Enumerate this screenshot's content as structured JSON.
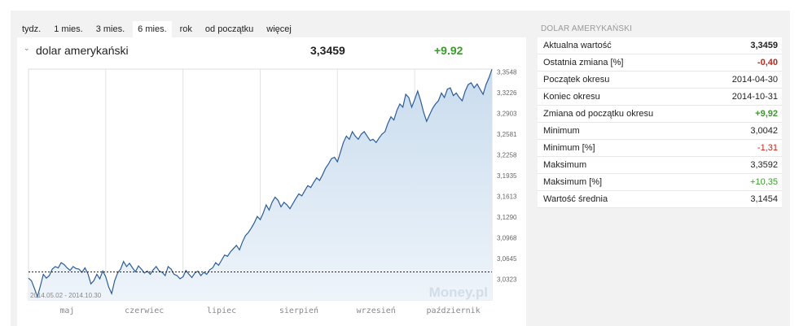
{
  "tabs": [
    {
      "label": "tydz."
    },
    {
      "label": "1 mies."
    },
    {
      "label": "3 mies."
    },
    {
      "label": "6 mies.",
      "active": true
    },
    {
      "label": "rok"
    },
    {
      "label": "od początku"
    },
    {
      "label": "więcej"
    }
  ],
  "header": {
    "name": "dolar amerykański",
    "value": "3,3459",
    "change": "+9.92"
  },
  "sidebar": {
    "title": "DOLAR AMERYKAŃSKI",
    "rows": [
      {
        "label": "Aktualna wartość",
        "value": "3,3459",
        "style": "bold"
      },
      {
        "label": "Ostatnia zmiana [%]",
        "value": "-0,40",
        "style": "red bold"
      },
      {
        "label": "Początek okresu",
        "value": "2014-04-30",
        "style": ""
      },
      {
        "label": "Koniec okresu",
        "value": "2014-10-31",
        "style": ""
      },
      {
        "label": "Zmiana od początku okresu",
        "value": "+9,92",
        "style": "green bold"
      },
      {
        "label": "Minimum",
        "value": "3,0042",
        "style": ""
      },
      {
        "label": "Minimum [%]",
        "value": "-1,31",
        "style": "red"
      },
      {
        "label": "Maksimum",
        "value": "3,3592",
        "style": ""
      },
      {
        "label": "Maksimum [%]",
        "value": "+10,35",
        "style": "green"
      },
      {
        "label": "Wartość średnia",
        "value": "3,1454",
        "style": ""
      }
    ]
  },
  "chart_data": {
    "type": "area",
    "date_range_label": "2014.05.02 - 2014.10.30",
    "watermark": "Money.pl",
    "x_labels": [
      "maj",
      "czerwiec",
      "lipiec",
      "sierpień",
      "wrzesień",
      "październik"
    ],
    "y_ticks": [
      "3,0323",
      "3,0645",
      "3,0968",
      "3,1290",
      "3,1613",
      "3,1935",
      "3,2258",
      "3,2581",
      "3,2903",
      "3,3226",
      "3,3548"
    ],
    "ylim": [
      3.0,
      3.3592
    ],
    "reference_value": 3.0436,
    "grid": true,
    "line_color": "#2b5c96",
    "values": [
      3.034,
      3.03,
      3.018,
      3.005,
      3.022,
      3.04,
      3.034,
      3.038,
      3.048,
      3.052,
      3.05,
      3.058,
      3.055,
      3.05,
      3.046,
      3.052,
      3.049,
      3.048,
      3.043,
      3.05,
      3.041,
      3.025,
      3.03,
      3.04,
      3.033,
      3.045,
      3.036,
      3.02,
      3.01,
      3.03,
      3.042,
      3.048,
      3.06,
      3.052,
      3.057,
      3.05,
      3.044,
      3.053,
      3.048,
      3.042,
      3.045,
      3.04,
      3.047,
      3.052,
      3.045,
      3.043,
      3.038,
      3.052,
      3.048,
      3.04,
      3.038,
      3.033,
      3.036,
      3.046,
      3.04,
      3.035,
      3.042,
      3.045,
      3.038,
      3.043,
      3.04,
      3.047,
      3.05,
      3.058,
      3.054,
      3.062,
      3.07,
      3.068,
      3.075,
      3.08,
      3.085,
      3.078,
      3.09,
      3.1,
      3.105,
      3.112,
      3.12,
      3.13,
      3.125,
      3.135,
      3.148,
      3.14,
      3.152,
      3.16,
      3.155,
      3.145,
      3.152,
      3.148,
      3.142,
      3.15,
      3.158,
      3.165,
      3.162,
      3.17,
      3.178,
      3.175,
      3.183,
      3.19,
      3.186,
      3.195,
      3.205,
      3.212,
      3.22,
      3.222,
      3.215,
      3.23,
      3.245,
      3.255,
      3.25,
      3.262,
      3.255,
      3.25,
      3.258,
      3.262,
      3.255,
      3.248,
      3.25,
      3.245,
      3.252,
      3.258,
      3.262,
      3.275,
      3.285,
      3.28,
      3.295,
      3.305,
      3.3,
      3.32,
      3.315,
      3.3,
      3.312,
      3.325,
      3.31,
      3.292,
      3.278,
      3.288,
      3.298,
      3.305,
      3.31,
      3.322,
      3.315,
      3.328,
      3.33,
      3.318,
      3.322,
      3.315,
      3.31,
      3.325,
      3.335,
      3.338,
      3.33,
      3.336,
      3.328,
      3.32,
      3.335,
      3.346,
      3.359
    ]
  }
}
